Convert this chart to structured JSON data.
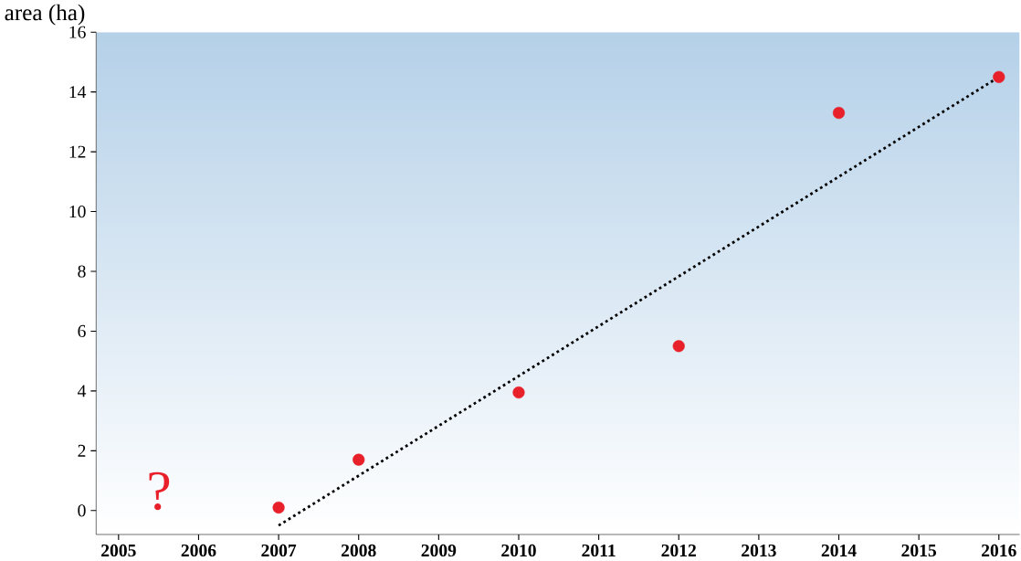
{
  "chart_data": {
    "type": "scatter",
    "ylabel": "area (ha)",
    "x": [
      2007,
      2008,
      2010,
      2012,
      2014,
      2016
    ],
    "series": [
      {
        "color": "#e8202a",
        "marker": "circle",
        "values": [
          0.1,
          1.7,
          3.95,
          5.5,
          13.3,
          14.5
        ]
      },
      {
        "type": "line",
        "color": "#000000",
        "marker": "none",
        "line_style": "dotted",
        "x": [
          2007,
          2016
        ],
        "values": [
          -0.5,
          14.5
        ]
      }
    ],
    "xlim": [
      2004.72,
      2016.26
    ],
    "ylim": [
      -0.8,
      16
    ],
    "xticks": [
      2005,
      2006,
      2007,
      2008,
      2009,
      2010,
      2011,
      2012,
      2013,
      2014,
      2015,
      2016
    ],
    "yticks": [
      0,
      2,
      4,
      6,
      8,
      10,
      12,
      14,
      16
    ],
    "annotations": [
      "?"
    ],
    "grid": false
  }
}
